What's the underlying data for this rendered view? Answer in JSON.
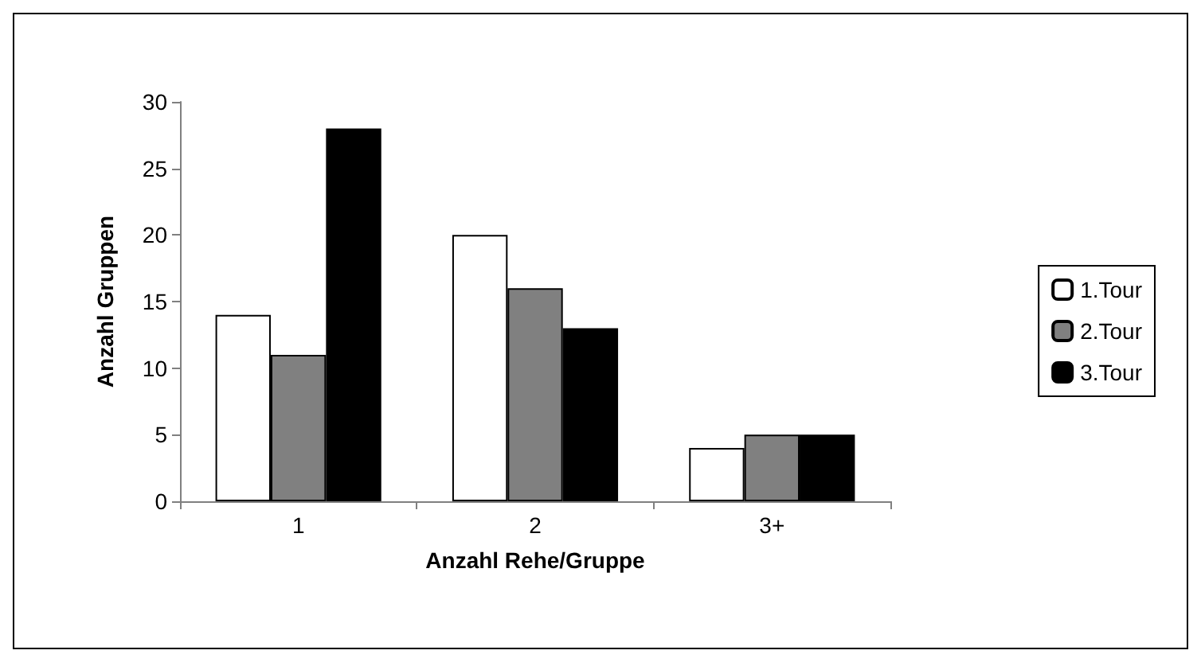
{
  "chart_data": {
    "type": "bar",
    "xlabel": "Anzahl Rehe/Gruppe",
    "ylabel": "Anzahl Gruppen",
    "categories": [
      "1",
      "2",
      "3+"
    ],
    "series": [
      {
        "name": "1.Tour",
        "color": "#ffffff",
        "values": [
          14,
          20,
          4
        ]
      },
      {
        "name": "2.Tour",
        "color": "#808080",
        "values": [
          11,
          16,
          5
        ]
      },
      {
        "name": "3.Tour",
        "color": "#000000",
        "values": [
          28,
          13,
          5
        ]
      }
    ],
    "ylim": [
      0,
      30
    ],
    "yticks": [
      0,
      5,
      10,
      15,
      20,
      25,
      30
    ],
    "grid": false,
    "legend": "right"
  }
}
